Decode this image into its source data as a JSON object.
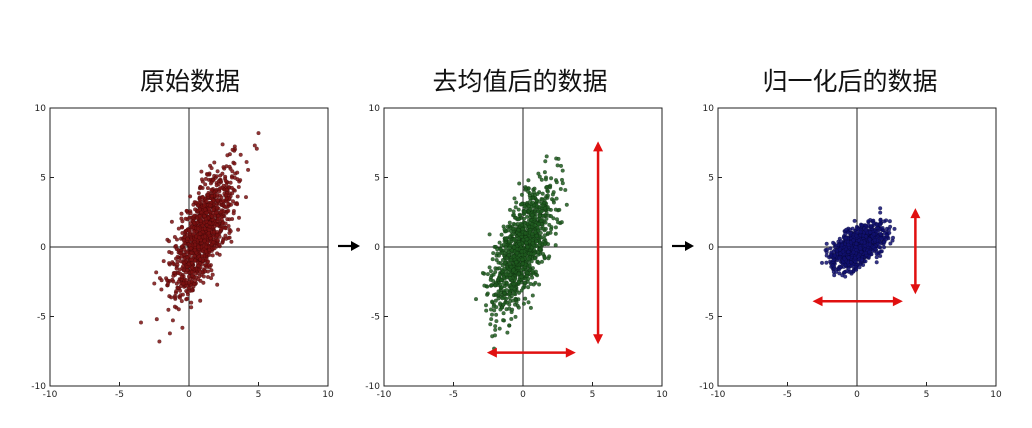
{
  "chart_data": [
    {
      "type": "scatter",
      "title": "原始数据",
      "xlim": [
        -10,
        10
      ],
      "ylim": [
        -10,
        10
      ],
      "xticks": [
        "-10",
        "-5",
        "0",
        "5",
        "10"
      ],
      "yticks": [
        "10",
        "5",
        "0",
        "-5",
        "-10"
      ],
      "axes_lines_through_origin": true,
      "grid": false,
      "point_color": "#7a1010",
      "cloud": {
        "mean": [
          1,
          1
        ],
        "std_major": 2.4,
        "std_minor": 0.75,
        "angle_deg": 70,
        "n": 1100
      }
    },
    {
      "type": "scatter",
      "title": "去均值后的数据",
      "xlim": [
        -10,
        10
      ],
      "ylim": [
        -10,
        10
      ],
      "xticks": [
        "-10",
        "-5",
        "0",
        "5",
        "10"
      ],
      "yticks": [
        "10",
        "5",
        "0",
        "-5",
        "-10"
      ],
      "axes_lines_through_origin": true,
      "grid": false,
      "point_color": "#1f5a1f",
      "cloud": {
        "mean": [
          0,
          0
        ],
        "std_major": 2.4,
        "std_minor": 0.75,
        "angle_deg": 70,
        "n": 1100
      },
      "annotation_arrows": [
        {
          "orientation": "vertical",
          "x": 5.4,
          "from": -7,
          "to": 7.6,
          "color": "#e01010"
        },
        {
          "orientation": "horizontal",
          "y": -7.6,
          "from": -2.6,
          "to": 3.8,
          "color": "#e01010"
        }
      ]
    },
    {
      "type": "scatter",
      "title": "归一化后的数据",
      "xlim": [
        -10,
        10
      ],
      "ylim": [
        -10,
        10
      ],
      "xticks": [
        "-10",
        "-5",
        "0",
        "5",
        "10"
      ],
      "yticks": [
        "10",
        "5",
        "0",
        "-5",
        "-10"
      ],
      "axes_lines_through_origin": true,
      "grid": false,
      "point_color": "#101070",
      "cloud": {
        "mean": [
          0,
          0
        ],
        "std_major": 1.05,
        "std_minor": 0.55,
        "angle_deg": 35,
        "n": 1100
      },
      "annotation_arrows": [
        {
          "orientation": "vertical",
          "x": 4.2,
          "from": -3.4,
          "to": 2.8,
          "color": "#e01010"
        },
        {
          "orientation": "horizontal",
          "y": -3.9,
          "from": -3.2,
          "to": 3.3,
          "color": "#e01010"
        }
      ]
    }
  ],
  "flow_arrows": {
    "count": 2,
    "color": "#000000"
  }
}
